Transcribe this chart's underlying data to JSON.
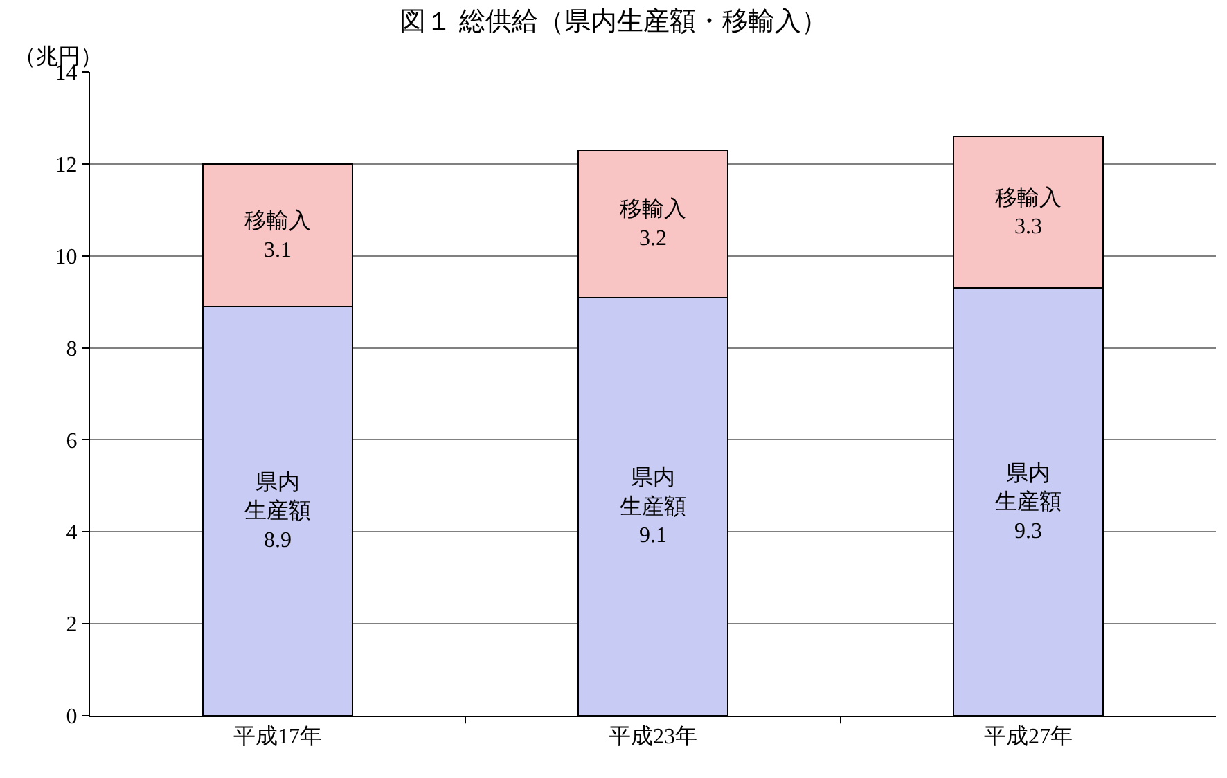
{
  "chart_data": {
    "type": "bar",
    "title": "図１ 総供給（県内生産額・移輸入）",
    "ylabel": "（兆円）",
    "categories": [
      "平成17年",
      "平成23年",
      "平成27年"
    ],
    "series": [
      {
        "name": "県内生産額",
        "color": "#c8ccf4",
        "values": [
          8.9,
          9.1,
          9.3
        ]
      },
      {
        "name": "移輸入",
        "color": "#f8c4c4",
        "values": [
          3.1,
          3.2,
          3.3
        ]
      }
    ],
    "stacked": true,
    "data_labels": true,
    "ylim": [
      0,
      14
    ],
    "yticks": [
      0,
      2,
      4,
      6,
      8,
      10,
      12,
      14
    ],
    "grid": "y",
    "legend": false
  }
}
